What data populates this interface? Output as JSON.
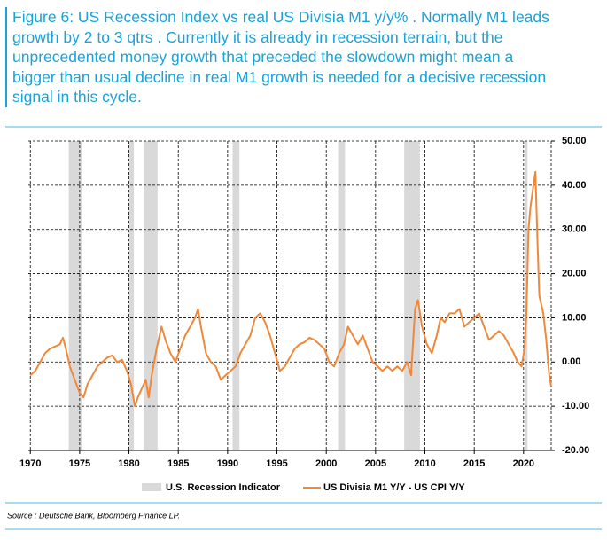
{
  "chart_data": {
    "type": "line",
    "title_lines": [
      "Figure 6: US Recession Index vs real US Divisia M1 y/y% . Normally M1 leads",
      "growth by 2 to 3 qtrs . Currently it is already in recession terrain, but the",
      "unprecedented money growth that preceded the slowdown might mean a",
      "bigger than usual decline in real M1 growth is needed for a decisive recession",
      "signal in this cycle."
    ],
    "xlim": [
      1969.8,
      2022.8
    ],
    "xticks": [
      1970,
      1975,
      1980,
      1985,
      1990,
      1995,
      2000,
      2005,
      2010,
      2015,
      2020
    ],
    "ylim": [
      -20,
      50
    ],
    "yticks": [
      {
        "value": -20,
        "label": "-20.00"
      },
      {
        "value": -10,
        "label": "-10.00"
      },
      {
        "value": 0,
        "label": "0.00"
      },
      {
        "value": 10,
        "label": "10.00"
      },
      {
        "value": 20,
        "label": "20.00"
      },
      {
        "value": 30,
        "label": "30.00"
      },
      {
        "value": 40,
        "label": "40.00"
      },
      {
        "value": 50,
        "label": "50.00"
      }
    ],
    "grid": true,
    "bands": {
      "name": "U.S. Recession Indicator",
      "color": "#d9d9d9",
      "spans": [
        [
          1973.9,
          1975.2
        ],
        [
          1980.0,
          1980.5
        ],
        [
          1981.5,
          1982.9
        ],
        [
          1990.5,
          1991.2
        ],
        [
          2001.2,
          2001.9
        ],
        [
          2007.9,
          2009.5
        ],
        [
          2020.1,
          2020.4
        ]
      ]
    },
    "series": [
      {
        "name": "US Divisia M1 Y/Y - US CPI Y/Y",
        "color": "#f0883a",
        "x": [
          1970,
          1970.5,
          1971,
          1971.5,
          1972,
          1972.5,
          1973,
          1973.3,
          1973.6,
          1974,
          1974.5,
          1975,
          1975.4,
          1975.8,
          1976.3,
          1976.8,
          1977.3,
          1977.8,
          1978.3,
          1978.8,
          1979.3,
          1979.8,
          1980.2,
          1980.6,
          1980.9,
          1981.3,
          1981.7,
          1982,
          1982.3,
          1982.8,
          1983.3,
          1983.7,
          1984.2,
          1984.7,
          1985.2,
          1985.7,
          1986.2,
          1986.7,
          1987,
          1987.3,
          1987.8,
          1988.3,
          1988.8,
          1989.3,
          1989.8,
          1990.3,
          1990.8,
          1991.3,
          1991.8,
          1992.3,
          1992.8,
          1993.3,
          1993.8,
          1994.3,
          1994.8,
          1995.3,
          1995.8,
          1996.3,
          1996.8,
          1997.3,
          1997.8,
          1998.3,
          1998.8,
          1999.3,
          1999.8,
          2000.3,
          2000.8,
          2001.3,
          2001.8,
          2002.2,
          2002.7,
          2003.2,
          2003.7,
          2004.2,
          2004.7,
          2005.2,
          2005.7,
          2006.2,
          2006.7,
          2007.2,
          2007.7,
          2008.2,
          2008.6,
          2009,
          2009.3,
          2009.7,
          2010.2,
          2010.7,
          2011.2,
          2011.6,
          2012,
          2012.5,
          2013,
          2013.5,
          2014,
          2014.5,
          2015,
          2015.5,
          2016,
          2016.5,
          2017,
          2017.5,
          2018,
          2018.5,
          2019,
          2019.4,
          2019.8,
          2020.1,
          2020.3,
          2020.5,
          2020.7,
          2021,
          2021.2,
          2021.4,
          2021.6,
          2022,
          2022.3,
          2022.6,
          2022.8
        ],
        "values": [
          -3,
          -2,
          0,
          2,
          3,
          3.5,
          4,
          5.5,
          3,
          -1,
          -4,
          -7,
          -8,
          -5,
          -3,
          -1,
          0,
          1,
          1.5,
          0,
          0.5,
          -2,
          -5,
          -10,
          -8,
          -6,
          -4,
          -8,
          -3,
          3,
          8,
          5,
          2,
          0,
          3,
          6,
          8,
          10,
          12,
          8,
          2,
          0,
          -1,
          -4,
          -3,
          -2,
          -1,
          2,
          4,
          6,
          10,
          11,
          9,
          6,
          2,
          -2,
          -1,
          1,
          3,
          4,
          4.5,
          5.5,
          5,
          4,
          3,
          0,
          -1,
          2,
          4,
          8,
          6,
          4,
          6,
          3,
          0,
          -1,
          -2,
          -1,
          -2,
          -1,
          -2,
          0,
          -3,
          12,
          14,
          8,
          4,
          2,
          6,
          10,
          9,
          11,
          11,
          12,
          8,
          9,
          10,
          11,
          8,
          5,
          6,
          7,
          6,
          4,
          2,
          0,
          -1,
          3,
          12,
          30,
          35,
          40,
          43,
          28,
          15,
          11,
          5,
          -3,
          -5.5
        ]
      }
    ],
    "source": "Source : Deutsche Bank, Bloomberg Finance LP."
  }
}
